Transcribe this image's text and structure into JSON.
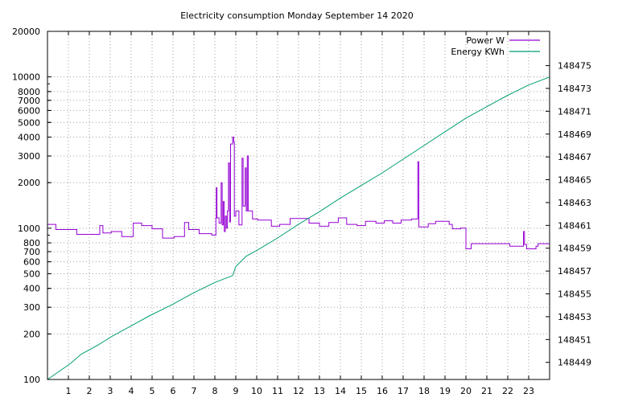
{
  "chart_data": {
    "type": "line",
    "title": "Electricity consumption Monday September 14 2020",
    "x_ticks": [
      1,
      2,
      3,
      4,
      5,
      6,
      7,
      8,
      9,
      10,
      11,
      12,
      13,
      14,
      15,
      16,
      17,
      18,
      19,
      20,
      21,
      22,
      23
    ],
    "xlim": [
      0,
      24
    ],
    "y_left": {
      "scale": "log",
      "lim": [
        100,
        20000
      ],
      "ticks": [
        100,
        200,
        300,
        400,
        500,
        600,
        700,
        800,
        1000,
        2000,
        3000,
        4000,
        5000,
        6000,
        7000,
        8000,
        10000,
        20000
      ]
    },
    "y_right": {
      "scale": "linear",
      "lim": [
        148447.5,
        148478
      ],
      "ticks": [
        148449,
        148451,
        148453,
        148455,
        148457,
        148459,
        148461,
        148463,
        148465,
        148467,
        148469,
        148471,
        148473,
        148475
      ]
    },
    "grid": true,
    "legend_position": "top-right",
    "colors": {
      "power": "#9400d3",
      "energy": "#009e73"
    },
    "series": [
      {
        "name": "Power W",
        "axis": "left",
        "shape": "step",
        "points": [
          [
            0,
            1060
          ],
          [
            0.4,
            980
          ],
          [
            1.4,
            910
          ],
          [
            2.5,
            1040
          ],
          [
            2.65,
            930
          ],
          [
            3.05,
            950
          ],
          [
            3.55,
            880
          ],
          [
            4.1,
            1080
          ],
          [
            4.5,
            1040
          ],
          [
            5.0,
            990
          ],
          [
            5.5,
            860
          ],
          [
            6.05,
            880
          ],
          [
            6.55,
            1090
          ],
          [
            6.75,
            980
          ],
          [
            7.25,
            920
          ],
          [
            7.85,
            900
          ],
          [
            8.05,
            1170
          ],
          [
            8.07,
            1850
          ],
          [
            8.1,
            1170
          ],
          [
            8.2,
            1080
          ],
          [
            8.3,
            2000
          ],
          [
            8.35,
            1050
          ],
          [
            8.4,
            1500
          ],
          [
            8.45,
            950
          ],
          [
            8.5,
            1200
          ],
          [
            8.55,
            1000
          ],
          [
            8.6,
            1300
          ],
          [
            8.65,
            2700
          ],
          [
            8.7,
            1100
          ],
          [
            8.75,
            3600
          ],
          [
            8.85,
            4000
          ],
          [
            8.9,
            3700
          ],
          [
            8.93,
            1200
          ],
          [
            9.0,
            1300
          ],
          [
            9.15,
            1050
          ],
          [
            9.3,
            2900
          ],
          [
            9.35,
            1400
          ],
          [
            9.45,
            2500
          ],
          [
            9.5,
            1300
          ],
          [
            9.55,
            3000
          ],
          [
            9.6,
            1300
          ],
          [
            9.8,
            1150
          ],
          [
            10.05,
            1130
          ],
          [
            10.7,
            1030
          ],
          [
            11.1,
            1060
          ],
          [
            11.6,
            1160
          ],
          [
            12.5,
            1080
          ],
          [
            13.0,
            1030
          ],
          [
            13.45,
            1090
          ],
          [
            13.9,
            1170
          ],
          [
            14.3,
            1060
          ],
          [
            14.8,
            1040
          ],
          [
            15.2,
            1110
          ],
          [
            15.7,
            1080
          ],
          [
            16.1,
            1120
          ],
          [
            16.5,
            1080
          ],
          [
            16.9,
            1130
          ],
          [
            17.4,
            1150
          ],
          [
            17.7,
            2750
          ],
          [
            17.75,
            1020
          ],
          [
            18.2,
            1070
          ],
          [
            18.55,
            1110
          ],
          [
            19.2,
            1060
          ],
          [
            19.35,
            990
          ],
          [
            19.75,
            1000
          ],
          [
            20.0,
            730
          ],
          [
            20.25,
            790
          ],
          [
            21.7,
            790
          ],
          [
            22.1,
            760
          ],
          [
            22.75,
            950
          ],
          [
            22.8,
            780
          ],
          [
            22.9,
            730
          ],
          [
            23.35,
            760
          ],
          [
            23.45,
            790
          ],
          [
            24.0,
            790
          ]
        ]
      },
      {
        "name": "Energy KWh",
        "axis": "right",
        "shape": "line",
        "points": [
          [
            0,
            148447.5
          ],
          [
            1.1,
            148448.9
          ],
          [
            1.6,
            148449.7
          ],
          [
            2.4,
            148450.5
          ],
          [
            3.1,
            148451.3
          ],
          [
            4.0,
            148452.2
          ],
          [
            4.9,
            148453.1
          ],
          [
            6.0,
            148454.1
          ],
          [
            7.0,
            148455.1
          ],
          [
            8.0,
            148456.0
          ],
          [
            8.85,
            148456.6
          ],
          [
            9.0,
            148457.4
          ],
          [
            9.5,
            148458.3
          ],
          [
            10.0,
            148458.8
          ],
          [
            11.0,
            148459.9
          ],
          [
            12.0,
            148461.1
          ],
          [
            13.0,
            148462.2
          ],
          [
            14.0,
            148463.4
          ],
          [
            15.0,
            148464.5
          ],
          [
            16.0,
            148465.6
          ],
          [
            17.0,
            148466.8
          ],
          [
            18.0,
            148468.0
          ],
          [
            19.0,
            148469.2
          ],
          [
            20.0,
            148470.4
          ],
          [
            21.0,
            148471.4
          ],
          [
            22.0,
            148472.4
          ],
          [
            23.0,
            148473.3
          ],
          [
            24.0,
            148474.0
          ]
        ]
      }
    ]
  }
}
